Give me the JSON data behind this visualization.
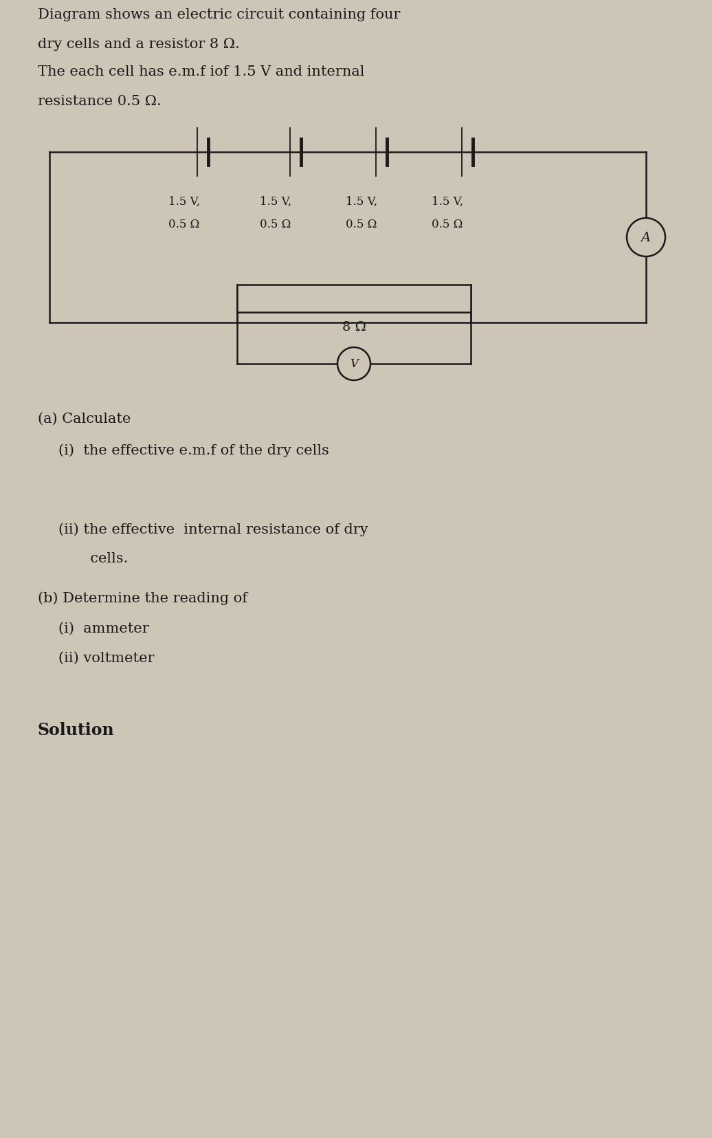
{
  "bg_color": "#cdc5b5",
  "text_color": "#1a1a1a",
  "title_line1": "Diagram shows an electric circuit containing four",
  "title_line2": "dry cells and a resistor 8 Ω.",
  "title_line3": "The each cell has e.m.f iof 1.5 V and internal",
  "title_line4": "resistance 0.5 Ω.",
  "question_a": "(a) Calculate",
  "question_a_i": "(i)  the effective e.m.f of the dry cells",
  "question_a_ii_line1": "(ii) the effective  internal resistance of dry",
  "question_a_ii_line2": "       cells.",
  "question_b": "(b) Determine the reading of",
  "question_b_i": "(i)  ammeter",
  "question_b_ii": "(ii) voltmeter",
  "solution_label": "Solution",
  "cell_labels": [
    "1.5 V,",
    "1.5 V,",
    "1.5 V,",
    "1.5 V,"
  ],
  "cell_r_labels": [
    "0.5 Ω",
    "0.5 Ω",
    "0.5 Ω",
    "0.5 Ω"
  ],
  "resistor_label": "8 Ω",
  "ammeter_label": "A",
  "voltmeter_label": "V"
}
